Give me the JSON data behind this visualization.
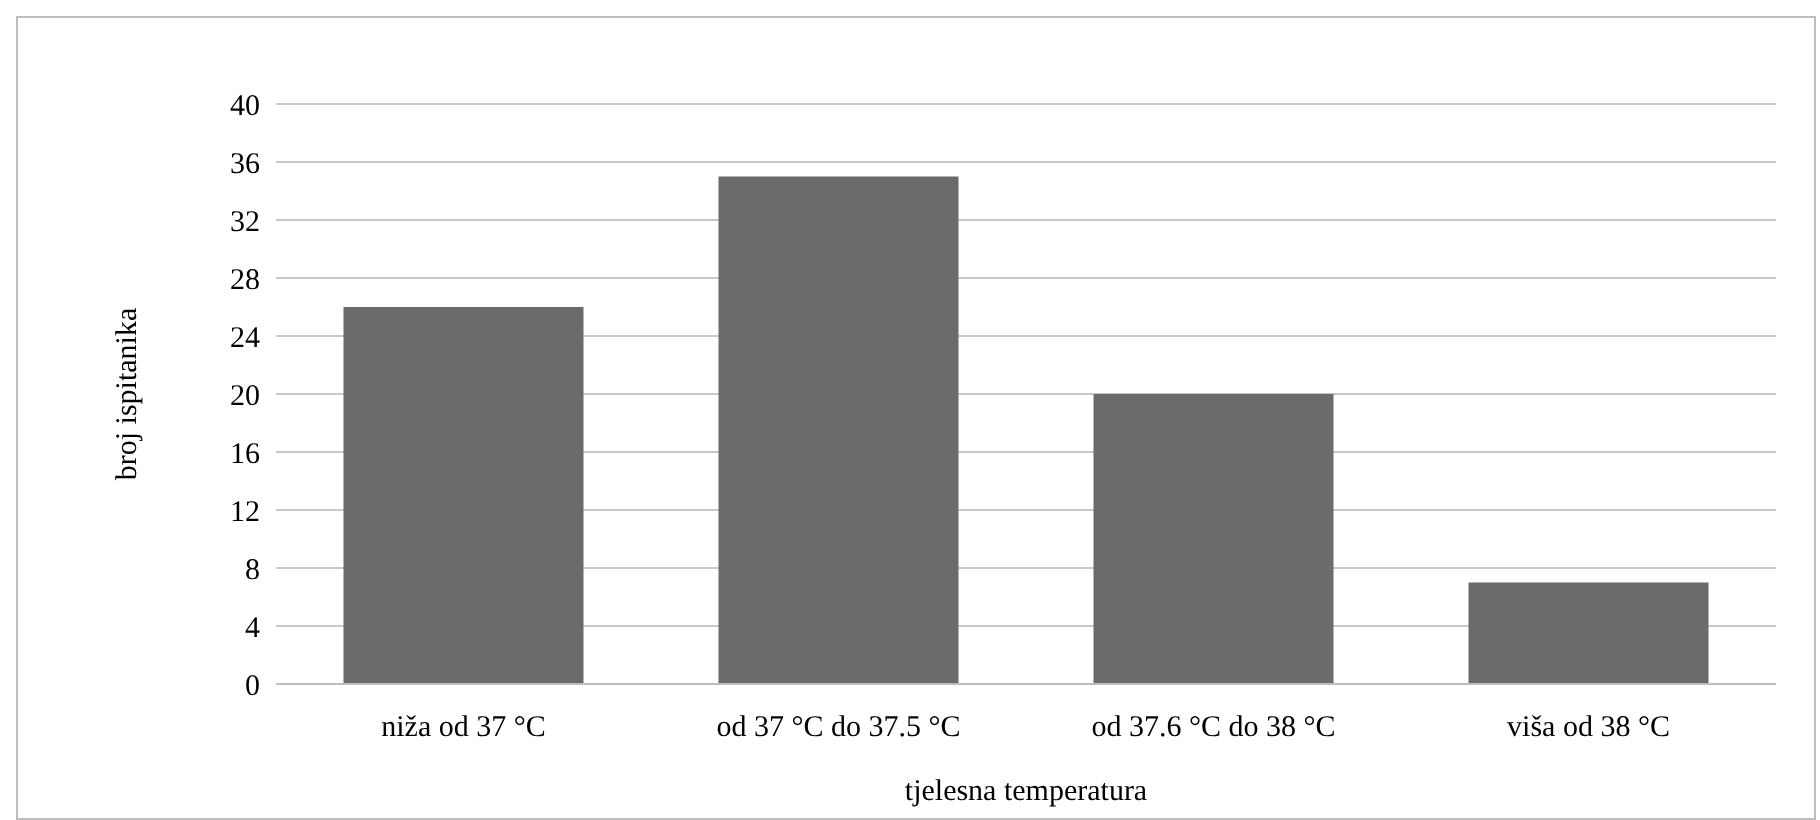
{
  "chart_data": {
    "type": "bar",
    "xlabel": "tjelesna temperatura",
    "ylabel": "broj ispitanika",
    "categories": [
      "niža od 37 °C",
      "od 37 °C do 37.5 °C",
      "od 37.6 °C do 38 °C",
      "viša od 38 °C"
    ],
    "values": [
      26,
      35,
      20,
      7
    ],
    "color": "#6b6b6b",
    "ylim": [
      0,
      40
    ],
    "yticks": [
      0,
      4,
      8,
      12,
      16,
      20,
      24,
      28,
      32,
      36,
      40
    ],
    "grid": "y"
  }
}
